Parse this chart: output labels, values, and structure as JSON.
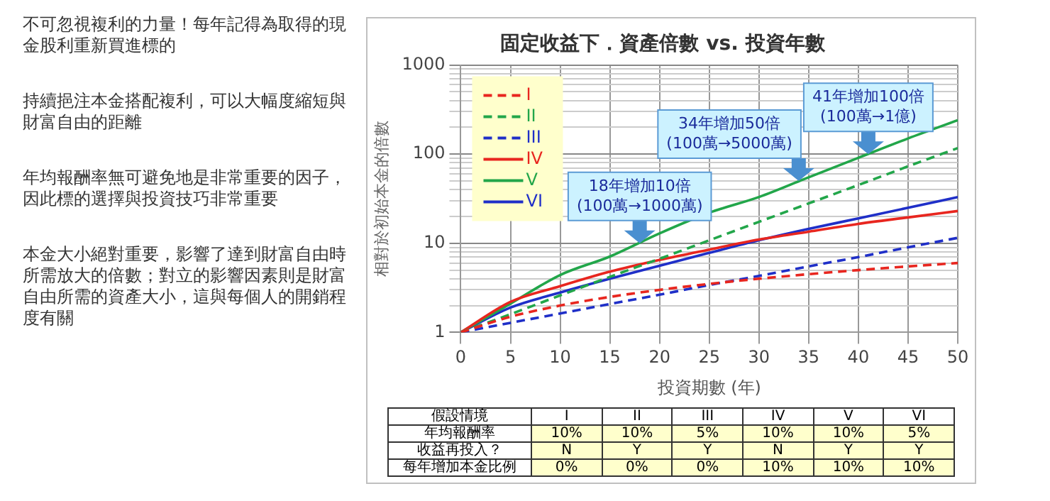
{
  "chart_data": {
    "type": "line",
    "title": "固定收益下．資產倍數 vs. 投資年數",
    "xlabel": "投資期數 (年)",
    "ylabel": "相對於初始本金的倍數",
    "x": [
      0,
      5,
      10,
      15,
      20,
      25,
      30,
      35,
      40,
      45,
      50
    ],
    "series": [
      {
        "name": "I",
        "color": "#e8261f",
        "line_style": "dashed",
        "values": [
          1,
          1.5,
          2,
          2.5,
          3,
          3.5,
          4,
          4.5,
          5,
          5.5,
          6
        ]
      },
      {
        "name": "II",
        "color": "#22a64a",
        "line_style": "dashed",
        "values": [
          1,
          1.6,
          2.6,
          4.2,
          6.7,
          10.8,
          17.4,
          28,
          45,
          73,
          117
        ]
      },
      {
        "name": "III",
        "color": "#1f2fc8",
        "line_style": "dashed",
        "values": [
          1,
          1.28,
          1.63,
          2.08,
          2.65,
          3.4,
          4.3,
          5.5,
          7,
          9,
          11.5
        ]
      },
      {
        "name": "IV",
        "color": "#e8261f",
        "line_style": "solid",
        "values": [
          1,
          2.2,
          3.3,
          4.8,
          6.5,
          8.5,
          11,
          13.5,
          16.5,
          19.5,
          23
        ]
      },
      {
        "name": "V",
        "color": "#22a64a",
        "line_style": "solid",
        "values": [
          1,
          2.1,
          4.4,
          7.1,
          12.9,
          22,
          33,
          55,
          91,
          150,
          240
        ]
      },
      {
        "name": "VI",
        "color": "#1f2fc8",
        "line_style": "solid",
        "values": [
          1,
          1.9,
          2.8,
          4,
          5.6,
          7.8,
          10.8,
          14.5,
          19,
          25,
          33
        ]
      }
    ],
    "xlim": [
      0,
      50
    ],
    "xticks": [
      0,
      5,
      10,
      15,
      20,
      25,
      30,
      35,
      40,
      45,
      50
    ],
    "ylim": [
      1,
      1000
    ],
    "yticks": [
      1,
      {
        "value": 2,
        "label": null
      },
      {
        "value": 3,
        "label": null
      },
      {
        "value": 4,
        "label": null
      },
      {
        "value": 5,
        "label": null
      },
      {
        "value": 6,
        "label": null
      },
      {
        "value": 7,
        "label": null
      },
      {
        "value": 8,
        "label": null
      },
      {
        "value": 9,
        "label": null
      },
      10,
      {
        "value": 20,
        "label": null
      },
      {
        "value": 30,
        "label": null
      },
      {
        "value": 40,
        "label": null
      },
      {
        "value": 50,
        "label": null
      },
      {
        "value": 60,
        "label": null
      },
      {
        "value": 70,
        "label": null
      },
      {
        "value": 80,
        "label": null
      },
      {
        "value": 90,
        "label": null
      },
      100,
      {
        "value": 200,
        "label": null
      },
      {
        "value": 300,
        "label": null
      },
      {
        "value": 400,
        "label": null
      },
      {
        "value": 500,
        "label": null
      },
      {
        "value": 600,
        "label": null
      },
      {
        "value": 700,
        "label": null
      },
      {
        "value": 800,
        "label": null
      },
      {
        "value": 900,
        "label": null
      },
      1000
    ],
    "log": "y",
    "grid": true,
    "legend": "top left",
    "marker": "none",
    "annotations": [
      "不可忽視複利的力量！每年記得為取得的現金股利重新買進標的",
      "持續挹注本金搭配複利，可以大幅度縮短與財富自由的距離",
      "年均報酬率無可避免地是非常重要的因子，因此標的選擇與投資技巧非常重要",
      "本金大小絕對重要，影響了達到財富自由時所需放大的倍數；對立的影響因素則是財富自由所需的資產大小，這與每個人的開銷程度有關",
      {
        "text": "18年增加10倍\n(100萬→1000萬)",
        "x": 18,
        "y": 10
      },
      {
        "text": "34年增加50倍\n(100萬→5000萬)",
        "x": 34,
        "y": 50
      },
      {
        "text": "41年增加100倍\n(100萬→1億)",
        "x": 41,
        "y": 100
      },
      "假設情境",
      "I",
      "II",
      "III",
      "IV",
      "V",
      "VI",
      "年均報酬率",
      "10%",
      "10%",
      "5%",
      "10%",
      "10%",
      "5%",
      "收益再投入？",
      "N",
      "Y",
      "Y",
      "N",
      "Y",
      "Y",
      "每年增加本金比例",
      "0%",
      "0%",
      "0%",
      "10%",
      "10%",
      "10%"
    ]
  }
}
